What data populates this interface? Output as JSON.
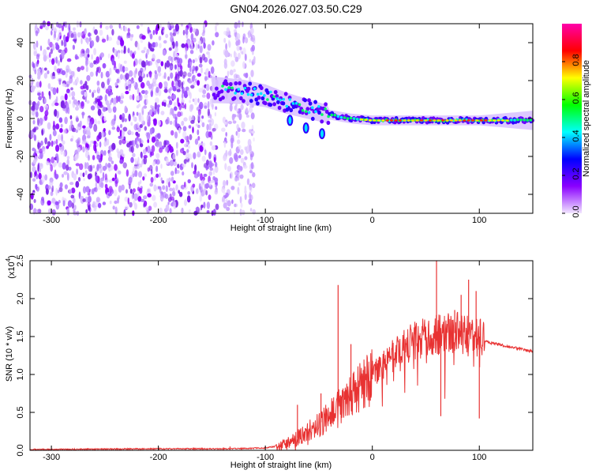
{
  "title": "GN04.2026.027.03.50.C29",
  "chart_data": [
    {
      "type": "heatmap",
      "name": "spectrogram",
      "xlabel": "Height of straight line (km)",
      "ylabel": "Frequency (Hz)",
      "xlim": [
        -320,
        150
      ],
      "ylim": [
        -50,
        50
      ],
      "xticks": [
        -300,
        -200,
        -100,
        0,
        100
      ],
      "xtick_labels": [
        "-300",
        "-200",
        "-100",
        "0",
        "100"
      ],
      "yticks": [
        -40,
        -20,
        0,
        20,
        40
      ],
      "ytick_labels": [
        "-40",
        "-20",
        "0",
        "20",
        "40"
      ],
      "colorbar": {
        "label": "Normalized spectral amplitude",
        "range": [
          0,
          1
        ],
        "ticks": [
          0.0,
          0.2,
          0.4,
          0.6,
          0.8
        ],
        "tick_labels": [
          "0.0",
          "0.2",
          "0.4",
          "0.6",
          "0.8"
        ],
        "colors": [
          "#f2e6ff",
          "#8a00ff",
          "#0000ff",
          "#00ffff",
          "#00ff00",
          "#ffff00",
          "#ff0000",
          "#ff00aa"
        ]
      },
      "features": {
        "noise_region_x": [
          -320,
          -145
        ],
        "noise_band_x": [
          -140,
          -110
        ],
        "signal_track": [
          {
            "x": -145,
            "y": 15
          },
          {
            "x": -120,
            "y": 14
          },
          {
            "x": -100,
            "y": 12
          },
          {
            "x": -80,
            "y": 8
          },
          {
            "x": -60,
            "y": 5
          },
          {
            "x": -40,
            "y": 2
          },
          {
            "x": -20,
            "y": 0
          },
          {
            "x": 0,
            "y": -1
          },
          {
            "x": 50,
            "y": -1
          },
          {
            "x": 100,
            "y": -1
          },
          {
            "x": 150,
            "y": -1
          }
        ]
      }
    },
    {
      "type": "line",
      "name": "snr",
      "xlabel": "Height of straight line (km)",
      "ylabel": "SNR (10 * v/v)",
      "yscale_label": "(x10",
      "yscale_exp": "4",
      "xlim": [
        -320,
        150
      ],
      "ylim": [
        0,
        2.5
      ],
      "xticks": [
        -300,
        -200,
        -100,
        0,
        100
      ],
      "xtick_labels": [
        "-300",
        "-200",
        "-100",
        "0",
        "100"
      ],
      "yticks": [
        0,
        0.5,
        1.0,
        1.5,
        2.0,
        2.5
      ],
      "ytick_labels": [
        "0.0",
        "0.5",
        "1.0",
        "1.5",
        "2.0",
        "2.5"
      ],
      "color": "#e83232",
      "envelope": [
        {
          "x": -320,
          "y": 0.01
        },
        {
          "x": -200,
          "y": 0.02
        },
        {
          "x": -135,
          "y": 0.02
        },
        {
          "x": -100,
          "y": 0.03
        },
        {
          "x": -80,
          "y": 0.08
        },
        {
          "x": -60,
          "y": 0.25
        },
        {
          "x": -40,
          "y": 0.45
        },
        {
          "x": -20,
          "y": 0.75
        },
        {
          "x": 0,
          "y": 1.0
        },
        {
          "x": 20,
          "y": 1.25
        },
        {
          "x": 40,
          "y": 1.45
        },
        {
          "x": 60,
          "y": 1.52
        },
        {
          "x": 80,
          "y": 1.55
        },
        {
          "x": 100,
          "y": 1.5
        },
        {
          "x": 110,
          "y": 1.42
        },
        {
          "x": 130,
          "y": 1.36
        },
        {
          "x": 150,
          "y": 1.3
        }
      ],
      "spikes": [
        {
          "x": -133,
          "y": 0.05
        },
        {
          "x": -70,
          "y": 0.6
        },
        {
          "x": -48,
          "y": 0.75
        },
        {
          "x": -32,
          "y": 2.18
        },
        {
          "x": -20,
          "y": 1.4
        },
        {
          "x": 60,
          "y": 2.5
        },
        {
          "x": 64,
          "y": 0.45
        },
        {
          "x": 77,
          "y": 1.85
        },
        {
          "x": 83,
          "y": 2.05
        },
        {
          "x": 90,
          "y": 2.25
        },
        {
          "x": 97,
          "y": 2.1
        },
        {
          "x": 100,
          "y": 0.42
        }
      ]
    }
  ]
}
